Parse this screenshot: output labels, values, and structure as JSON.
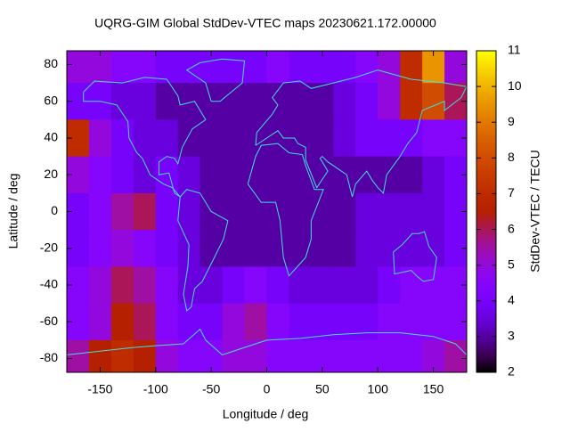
{
  "chart_data": {
    "type": "heatmap",
    "title": "UQRG-GIM Global StdDev-VTEC maps 20230621.172.00000",
    "x_label": "Longitude / deg",
    "y_label": "Latitude / deg",
    "colorbar_label": "StdDev-VTEC / TECU",
    "x": [
      -170,
      -150,
      -130,
      -110,
      -90,
      -70,
      -50,
      -30,
      -10,
      10,
      30,
      50,
      70,
      90,
      110,
      130,
      150,
      170
    ],
    "y": [
      80,
      60,
      40,
      20,
      0,
      -20,
      -40,
      -60,
      -80
    ],
    "values": [
      [
        5,
        5,
        4.5,
        4.5,
        4,
        4,
        4,
        4,
        4,
        4.5,
        4,
        4,
        4,
        4.5,
        5,
        7,
        9.5,
        5
      ],
      [
        4,
        4,
        3.5,
        3.5,
        3,
        3,
        3,
        3,
        3,
        3,
        3,
        3,
        3.5,
        4,
        5,
        7,
        8,
        6
      ],
      [
        7,
        5,
        4,
        3.5,
        3.5,
        3,
        3,
        3,
        3,
        3,
        3,
        3,
        3.5,
        4,
        4,
        4,
        4.5,
        4.5
      ],
      [
        5,
        4.5,
        4,
        3.5,
        4,
        3.5,
        3,
        3,
        3,
        3,
        3,
        3,
        3,
        3,
        3,
        3,
        3.5,
        4
      ],
      [
        4,
        4.5,
        5.5,
        6,
        4,
        3.5,
        3,
        3,
        3,
        3,
        3,
        3,
        3,
        3.5,
        3.5,
        3.5,
        3.5,
        4
      ],
      [
        4,
        4.5,
        5,
        4.5,
        4,
        3.5,
        3,
        3,
        3,
        3,
        3,
        3,
        3,
        3.5,
        3.5,
        3.5,
        3.5,
        4
      ],
      [
        4.5,
        5,
        6,
        5.5,
        4.5,
        3.5,
        3.5,
        4,
        4.5,
        4,
        3.5,
        3.5,
        3.5,
        3.5,
        4,
        4.5,
        4.5,
        4.5
      ],
      [
        4.5,
        5,
        6.5,
        6,
        4.5,
        4,
        4,
        5,
        5.5,
        4.5,
        4,
        4,
        4,
        4,
        4.5,
        4.5,
        4.5,
        4.5
      ],
      [
        5.5,
        6.5,
        7,
        6.5,
        5,
        4.5,
        4.5,
        5,
        5,
        4.5,
        4.5,
        4.5,
        4.5,
        4.5,
        4.5,
        4.5,
        5,
        5.5
      ]
    ],
    "xlim": [
      -180,
      180
    ],
    "ylim": [
      -87.5,
      87.5
    ],
    "xticks": [
      -150,
      -100,
      -50,
      0,
      50,
      100,
      150
    ],
    "yticks": [
      -80,
      -60,
      -40,
      -20,
      0,
      20,
      40,
      60,
      80
    ],
    "zlim": [
      2,
      11
    ],
    "zticks": [
      2,
      3,
      4,
      5,
      6,
      7,
      8,
      9,
      10,
      11
    ],
    "colormap": "gnuplot",
    "coastline_color": "#40e0e0"
  }
}
